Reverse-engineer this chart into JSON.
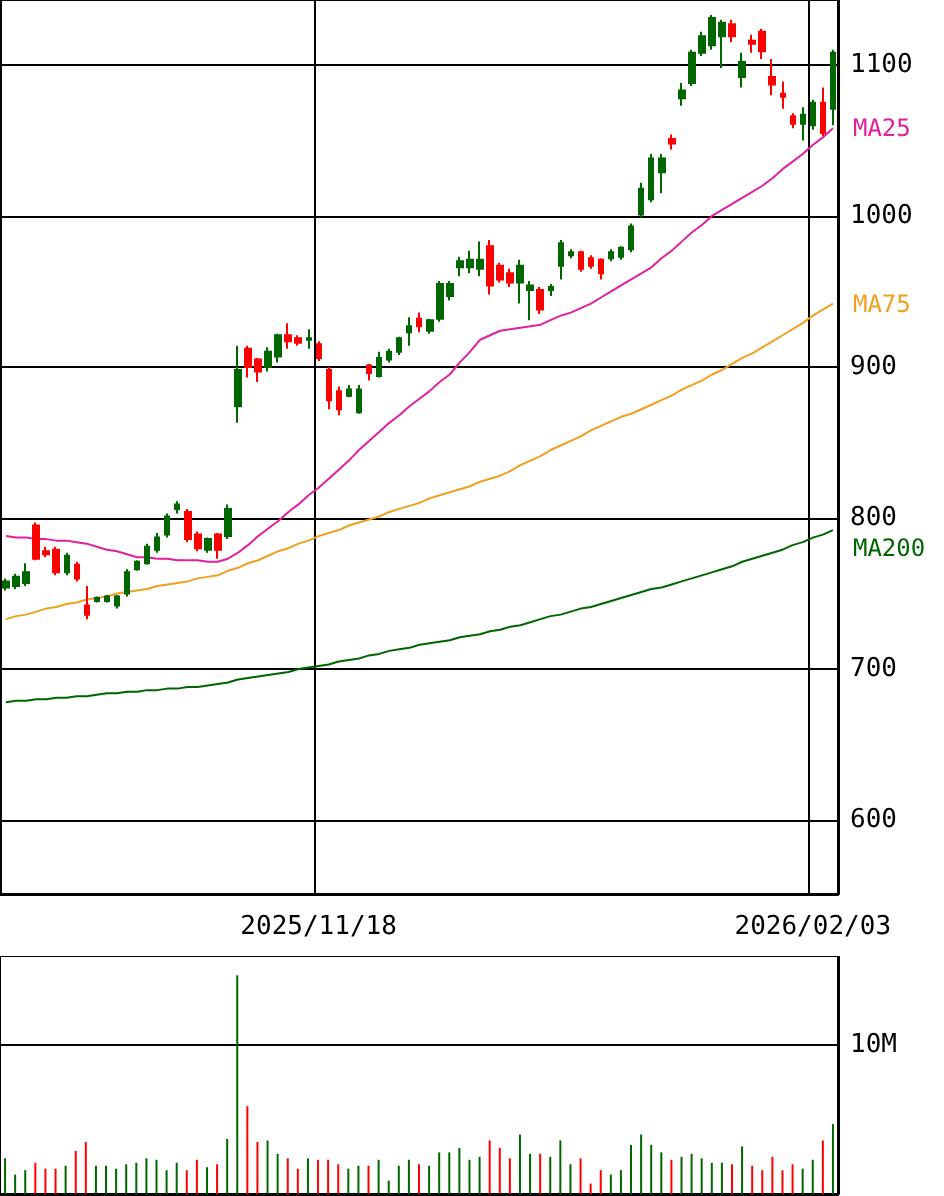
{
  "chart_data": [
    {
      "type": "candlestick",
      "categories": [
        null,
        null,
        null,
        null,
        null,
        null,
        null,
        null,
        null,
        null,
        null,
        null,
        null,
        null,
        null,
        null,
        null,
        null,
        null,
        null,
        null,
        null,
        null,
        null,
        null,
        null,
        null,
        null,
        null,
        null,
        null,
        "2025/11/18",
        null,
        null,
        null,
        null,
        null,
        null,
        null,
        null,
        null,
        null,
        null,
        null,
        null,
        null,
        null,
        null,
        null,
        null,
        null,
        null,
        null,
        null,
        null,
        null,
        null,
        null,
        null,
        null,
        null,
        null,
        null,
        null,
        null,
        null,
        null,
        null,
        null,
        null,
        null,
        null,
        null,
        null,
        null,
        null,
        null,
        null,
        null,
        null,
        "2026/02/03",
        null,
        null
      ],
      "ylim": [
        551,
        1143
      ],
      "yticks": [
        600,
        700,
        800,
        900,
        1000,
        1100
      ],
      "grid": true,
      "series": [
        {
          "type": "line",
          "name": "MA25",
          "color": "#e0209f",
          "values": [
            788,
            787,
            787,
            786,
            786,
            785,
            785,
            784,
            783,
            781,
            779,
            778,
            776,
            774,
            774,
            773,
            773,
            772,
            772,
            772,
            771,
            771,
            773,
            777,
            782,
            788,
            793,
            798,
            804,
            809,
            815,
            820,
            826,
            832,
            838,
            845,
            851,
            857,
            863,
            868,
            874,
            879,
            884,
            890,
            895,
            903,
            910,
            918,
            921,
            924,
            925,
            926,
            927,
            928,
            931,
            934,
            936,
            939,
            942,
            946,
            950,
            954,
            958,
            962,
            966,
            972,
            977,
            983,
            989,
            994,
            1000,
            1004,
            1008,
            1012,
            1016,
            1020,
            1025,
            1031,
            1036,
            1041,
            1047,
            1052,
            1058
          ]
        },
        {
          "type": "line",
          "name": "MA75",
          "color": "#f0a020",
          "values": [
            733,
            735,
            736,
            738,
            740,
            741,
            743,
            744,
            746,
            747,
            748,
            750,
            751,
            752,
            753,
            755,
            756,
            757,
            758,
            760,
            761,
            762,
            765,
            767,
            770,
            772,
            775,
            778,
            780,
            783,
            785,
            788,
            790,
            792,
            795,
            797,
            799,
            801,
            804,
            806,
            808,
            810,
            813,
            815,
            817,
            819,
            821,
            824,
            826,
            828,
            831,
            835,
            838,
            841,
            845,
            848,
            851,
            854,
            858,
            861,
            864,
            867,
            869,
            872,
            875,
            878,
            881,
            885,
            888,
            891,
            895,
            898,
            902,
            906,
            909,
            913,
            917,
            921,
            925,
            929,
            934,
            938,
            942
          ]
        },
        {
          "type": "line",
          "name": "MA200",
          "color": "#006400",
          "values": [
            678,
            679,
            679,
            680,
            680,
            681,
            681,
            682,
            682,
            683,
            684,
            684,
            685,
            685,
            686,
            686,
            687,
            687,
            688,
            688,
            689,
            690,
            691,
            693,
            694,
            695,
            696,
            697,
            698,
            700,
            701,
            702,
            703,
            705,
            706,
            707,
            709,
            710,
            712,
            713,
            714,
            716,
            717,
            718,
            719,
            721,
            722,
            723,
            725,
            726,
            728,
            729,
            731,
            733,
            735,
            736,
            738,
            740,
            741,
            743,
            745,
            747,
            749,
            751,
            753,
            754,
            756,
            758,
            760,
            762,
            764,
            766,
            768,
            771,
            773,
            775,
            777,
            779,
            782,
            784,
            787,
            789,
            792
          ]
        },
        {
          "type": "candlestick",
          "ohlc": [
            [
              754,
              760,
              752,
              758
            ],
            [
              755,
              763,
              753,
              761
            ],
            [
              757,
              770,
              755,
              764
            ],
            [
              795,
              797,
              772,
              773
            ],
            [
              778,
              781,
              774,
              776
            ],
            [
              779,
              781,
              762,
              764
            ],
            [
              764,
              777,
              762,
              775
            ],
            [
              769,
              771,
              758,
              760
            ],
            [
              742,
              755,
              733,
              736
            ],
            [
              745,
              748,
              744,
              747
            ],
            [
              745,
              749,
              744,
              748
            ],
            [
              742,
              749,
              740,
              748
            ],
            [
              750,
              766,
              748,
              764
            ],
            [
              766,
              772,
              765,
              771
            ],
            [
              770,
              783,
              769,
              781
            ],
            [
              779,
              790,
              777,
              787
            ],
            [
              789,
              803,
              787,
              801
            ],
            [
              806,
              811,
              803,
              809
            ],
            [
              804,
              806,
              784,
              786
            ],
            [
              789,
              791,
              778,
              780
            ],
            [
              779,
              787,
              777,
              786
            ],
            [
              789,
              790,
              773,
              779
            ],
            [
              788,
              809,
              786,
              806
            ],
            [
              874,
              914,
              863,
              898
            ],
            [
              912,
              914,
              893,
              900
            ],
            [
              905,
              906,
              890,
              897
            ],
            [
              900,
              913,
              897,
              910
            ],
            [
              907,
              922,
              903,
              921
            ],
            [
              921,
              929,
              912,
              917
            ],
            [
              919,
              921,
              914,
              916
            ],
            [
              918,
              925,
              912,
              919
            ],
            [
              915,
              917,
              904,
              906
            ],
            [
              898,
              900,
              872,
              878
            ],
            [
              884,
              887,
              868,
              872
            ],
            [
              881,
              888,
              880,
              885
            ],
            [
              870,
              888,
              869,
              885
            ],
            [
              901,
              902,
              891,
              896
            ],
            [
              894,
              910,
              893,
              906
            ],
            [
              905,
              912,
              903,
              910
            ],
            [
              910,
              920,
              908,
              919
            ],
            [
              923,
              933,
              914,
              927
            ],
            [
              932,
              936,
              923,
              927
            ],
            [
              924,
              932,
              922,
              931
            ],
            [
              932,
              957,
              930,
              955
            ],
            [
              947,
              957,
              944,
              955
            ],
            [
              966,
              973,
              960,
              970
            ],
            [
              966,
              977,
              962,
              971
            ],
            [
              965,
              983,
              960,
              971
            ],
            [
              980,
              984,
              948,
              954
            ],
            [
              967,
              969,
              956,
              958
            ],
            [
              962,
              965,
              953,
              956
            ],
            [
              956,
              971,
              942,
              967
            ],
            [
              951,
              957,
              931,
              954
            ],
            [
              951,
              953,
              935,
              938
            ],
            [
              951,
              955,
              947,
              953
            ],
            [
              967,
              984,
              958,
              982
            ],
            [
              974,
              978,
              972,
              976
            ],
            [
              976,
              977,
              963,
              965
            ],
            [
              972,
              974,
              965,
              967
            ],
            [
              971,
              972,
              958,
              962
            ],
            [
              972,
              978,
              970,
              976
            ],
            [
              973,
              980,
              971,
              979
            ],
            [
              978,
              995,
              976,
              993
            ],
            [
              1001,
              1022,
              999,
              1018
            ],
            [
              1011,
              1041,
              1009,
              1038
            ],
            [
              1029,
              1041,
              1015,
              1038
            ],
            [
              1051,
              1054,
              1044,
              1048
            ],
            [
              1078,
              1088,
              1073,
              1083
            ],
            [
              1088,
              1110,
              1086,
              1108
            ],
            [
              1108,
              1122,
              1106,
              1119
            ],
            [
              1113,
              1133,
              1110,
              1131
            ],
            [
              1119,
              1130,
              1098,
              1128
            ],
            [
              1127,
              1130,
              1115,
              1119
            ],
            [
              1092,
              1108,
              1085,
              1102
            ],
            [
              1116,
              1120,
              1108,
              1114
            ],
            [
              1122,
              1124,
              1104,
              1109
            ],
            [
              1092,
              1104,
              1080,
              1087
            ],
            [
              1081,
              1089,
              1071,
              1079
            ],
            [
              1066,
              1068,
              1058,
              1061
            ],
            [
              1061,
              1072,
              1050,
              1067
            ],
            [
              1060,
              1077,
              1057,
              1075
            ],
            [
              1075,
              1085,
              1053,
              1055
            ],
            [
              1071,
              1110,
              1060,
              1108
            ]
          ],
          "colors": [
            "#006600",
            "#006600",
            "#006600",
            "#ff0000",
            "#ff0000",
            "#ff0000",
            "#006600",
            "#ff0000",
            "#ff0000",
            "#006600",
            "#006600",
            "#006600",
            "#006600",
            "#006600",
            "#006600",
            "#006600",
            "#006600",
            "#006600",
            "#ff0000",
            "#ff0000",
            "#006600",
            "#ff0000",
            "#006600",
            "#006600",
            "#ff0000",
            "#ff0000",
            "#006600",
            "#006600",
            "#ff0000",
            "#ff0000",
            "#006600",
            "#ff0000",
            "#ff0000",
            "#ff0000",
            "#006600",
            "#006600",
            "#ff0000",
            "#006600",
            "#006600",
            "#006600",
            "#006600",
            "#ff0000",
            "#006600",
            "#006600",
            "#006600",
            "#006600",
            "#006600",
            "#006600",
            "#ff0000",
            "#ff0000",
            "#ff0000",
            "#006600",
            "#006600",
            "#ff0000",
            "#006600",
            "#006600",
            "#006600",
            "#ff0000",
            "#ff0000",
            "#ff0000",
            "#006600",
            "#006600",
            "#006600",
            "#006600",
            "#006600",
            "#006600",
            "#ff0000",
            "#006600",
            "#006600",
            "#006600",
            "#006600",
            "#006600",
            "#ff0000",
            "#006600",
            "#ff0000",
            "#ff0000",
            "#ff0000",
            "#ff0000",
            "#ff0000",
            "#006600",
            "#006600",
            "#ff0000",
            "#006600"
          ]
        }
      ]
    },
    {
      "type": "bar",
      "categories": [
        null,
        null,
        null,
        null,
        null,
        null,
        null,
        null,
        null,
        null,
        null,
        null,
        null,
        null,
        null,
        null,
        null,
        null,
        null,
        null,
        null,
        null,
        null,
        null,
        null,
        null,
        null,
        null,
        null,
        null,
        null,
        "2025/11/18",
        null,
        null,
        null,
        null,
        null,
        null,
        null,
        null,
        null,
        null,
        null,
        null,
        null,
        null,
        null,
        null,
        null,
        null,
        null,
        null,
        null,
        null,
        null,
        null,
        null,
        null,
        null,
        null,
        null,
        null,
        null,
        null,
        null,
        null,
        null,
        null,
        null,
        null,
        null,
        null,
        null,
        null,
        null,
        null,
        null,
        null,
        null,
        null,
        "2026/02/03",
        null,
        null
      ],
      "tick_labels": "y",
      "ylim": [
        0,
        16
      ],
      "yticks": [
        {
          "value": 0,
          "label": null
        },
        {
          "value": 10,
          "label": "10M"
        }
      ],
      "grid": "y",
      "values": [
        2.4,
        1.3,
        1.6,
        2.1,
        1.7,
        1.7,
        1.9,
        2.9,
        3.5,
        1.9,
        1.9,
        1.7,
        2.0,
        2.1,
        2.4,
        2.3,
        1.6,
        2.1,
        1.6,
        2.3,
        1.8,
        2.0,
        3.7,
        14.7,
        5.9,
        3.5,
        3.6,
        2.7,
        2.4,
        1.7,
        2.4,
        2.3,
        2.3,
        2.0,
        1.7,
        1.9,
        1.9,
        2.3,
        0.9,
        1.9,
        2.3,
        2.0,
        1.9,
        2.8,
        2.8,
        3.1,
        2.3,
        2.5,
        3.6,
        3.1,
        2.4,
        4.0,
        2.7,
        2.7,
        2.5,
        3.6,
        2.0,
        2.4,
        0.7,
        1.6,
        1.3,
        1.6,
        3.3,
        4.0,
        3.3,
        2.8,
        2.3,
        2.5,
        2.7,
        2.4,
        2.1,
        2.1,
        2.0,
        3.2,
        1.9,
        1.6,
        2.5,
        1.6,
        2.0,
        1.7,
        2.3,
        3.6,
        4.7
      ],
      "colors": [
        "#006600",
        "#006600",
        "#006600",
        "#ff0000",
        "#ff0000",
        "#ff0000",
        "#006600",
        "#ff0000",
        "#ff0000",
        "#006600",
        "#006600",
        "#006600",
        "#006600",
        "#006600",
        "#006600",
        "#006600",
        "#006600",
        "#006600",
        "#ff0000",
        "#ff0000",
        "#006600",
        "#ff0000",
        "#006600",
        "#006600",
        "#ff0000",
        "#ff0000",
        "#006600",
        "#006600",
        "#ff0000",
        "#ff0000",
        "#006600",
        "#ff0000",
        "#ff0000",
        "#ff0000",
        "#006600",
        "#006600",
        "#ff0000",
        "#006600",
        "#006600",
        "#006600",
        "#006600",
        "#ff0000",
        "#006600",
        "#006600",
        "#006600",
        "#006600",
        "#006600",
        "#006600",
        "#ff0000",
        "#ff0000",
        "#ff0000",
        "#006600",
        "#006600",
        "#ff0000",
        "#006600",
        "#006600",
        "#006600",
        "#ff0000",
        "#ff0000",
        "#ff0000",
        "#006600",
        "#006600",
        "#006600",
        "#006600",
        "#006600",
        "#006600",
        "#ff0000",
        "#006600",
        "#006600",
        "#006600",
        "#006600",
        "#006600",
        "#ff0000",
        "#006600",
        "#ff0000",
        "#ff0000",
        "#ff0000",
        "#ff0000",
        "#ff0000",
        "#006600",
        "#006600",
        "#ff0000",
        "#006600"
      ]
    }
  ]
}
